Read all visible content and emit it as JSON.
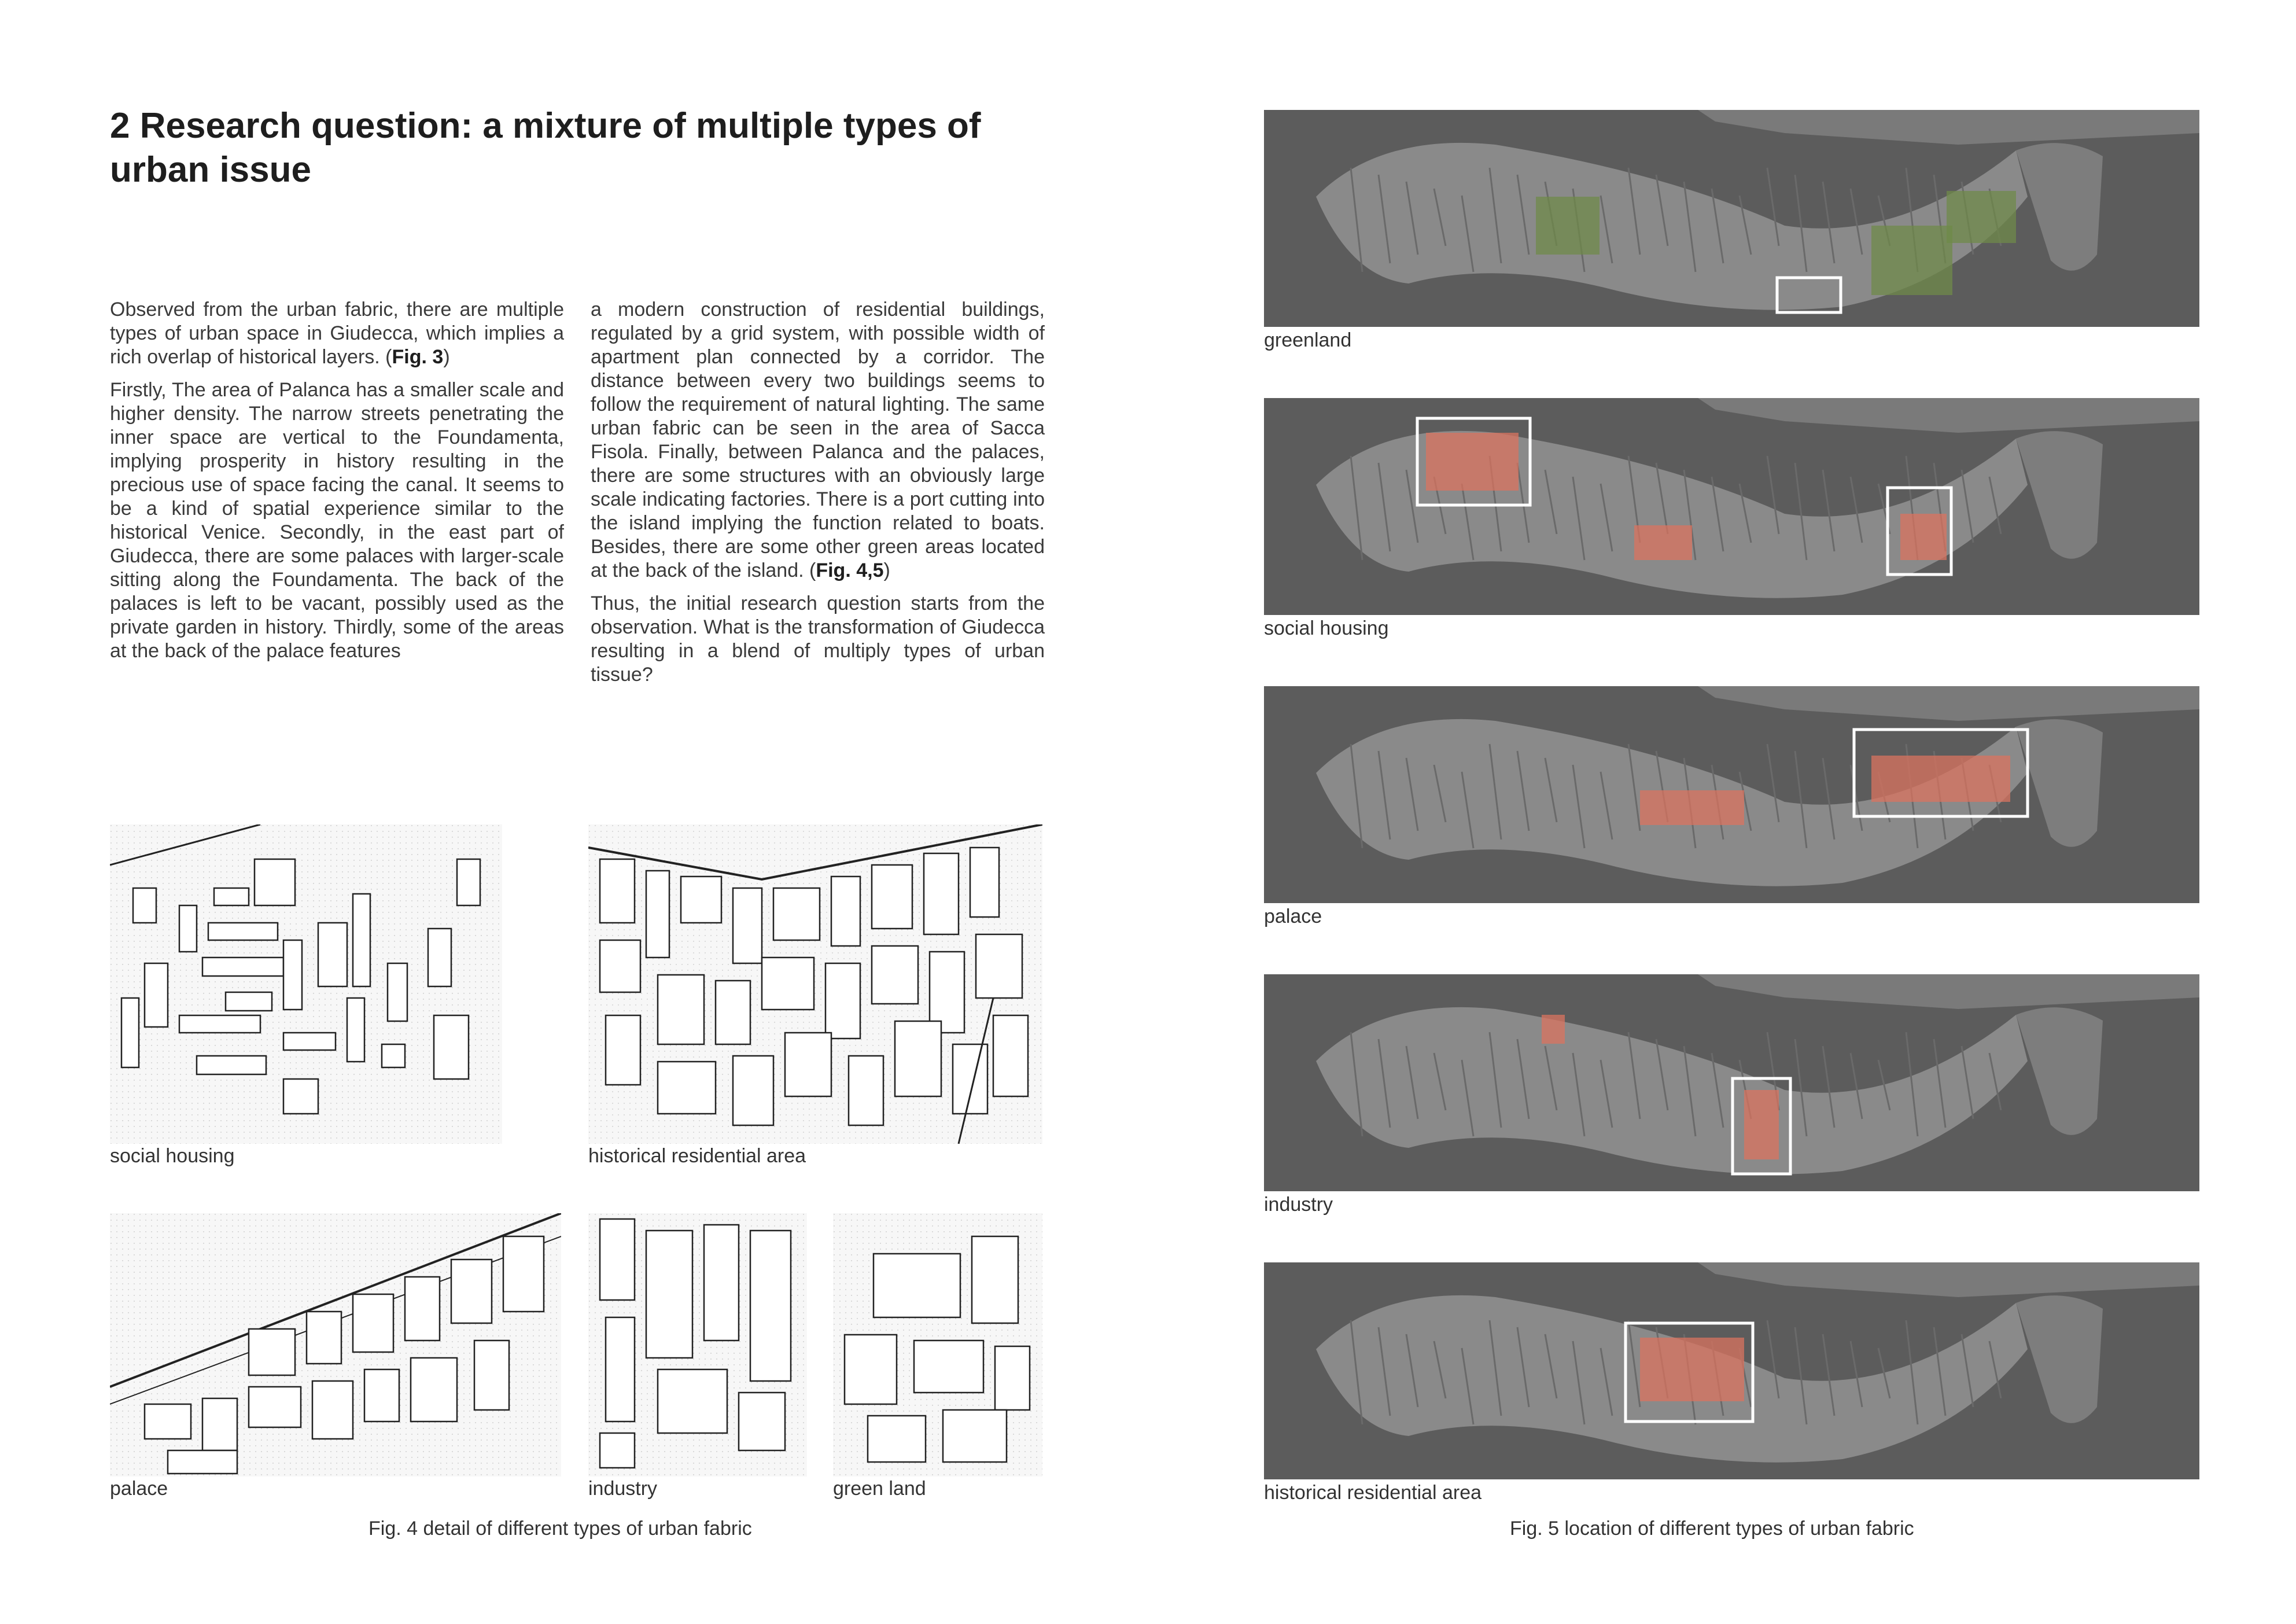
{
  "heading": {
    "line1": "2 Research question: a mixture of multiple types of",
    "line2": "urban issue"
  },
  "text": {
    "p1": "Observed from the urban fabric, there are multiple types of urban space in Giudecca, which implies a rich overlap of historical layers. (",
    "p1_ref": "Fig. 3",
    "p1_end": ")",
    "p2_a": "Firstly, The area of Palanca has a smaller scale and higher density. The narrow streets penetrating the inner space are vertical to the Foundamenta, implying prosperity in history resulting in the precious use of space facing the canal. It seems to be a kind of spatial experience similar to the historical Venice. Secondly, in the east part of Giudecca, there are some palaces with larger-scale sitting along the Foundamenta. The back of the palaces is left to be vacant, possibly used as the private garden in history. Thirdly, some of the areas at the back of the palace features a modern construction of residential buildings, regulated by a grid system, with possible width of apartment plan connected by a corridor. The distance between every two buildings seems to follow the requirement of natural lighting. The same urban fabric can be seen in the area of Sacca Fisola. Finally, between Palanca and the palaces, there are some structures with an obviously large scale indicating factories. There is a port cutting into the island implying the function related to boats. Besides, there are some other green areas located at the back of the island. (",
    "p2_ref": "Fig. 4,5",
    "p2_end": ")",
    "p3": "Thus, the initial research question starts from the observation. What is the transformation of Giudecca resulting in a blend of multiply types of urban tissue?"
  },
  "fig4": {
    "labels": {
      "social_housing": "social housing",
      "historical": "historical residential area",
      "palace": "palace",
      "industry": "industry",
      "green_land": "green land"
    },
    "caption": "Fig. 4 detail of different types of urban fabric"
  },
  "fig5": {
    "labels": [
      "greenland",
      "social housing",
      "palace",
      "industry",
      "historical residential area"
    ],
    "caption": "Fig. 5 location of different types of urban fabric"
  },
  "colors": {
    "highlight_red": "#d9735f",
    "highlight_green": "#6f8a4a",
    "water": "#5c5c5c",
    "island": "#8a8a8a",
    "frame": "#ffffff"
  }
}
